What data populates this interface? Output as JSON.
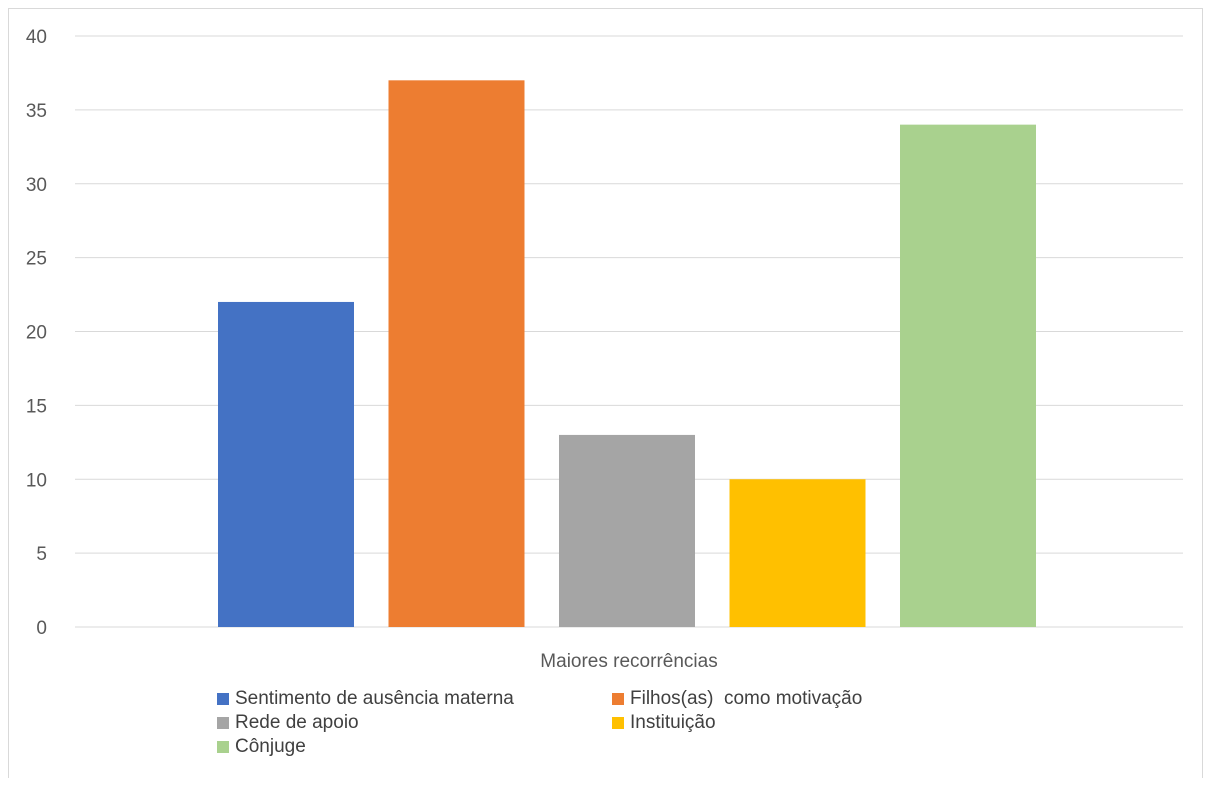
{
  "chart_data": {
    "type": "bar",
    "categories": [
      "Maiores recorrências"
    ],
    "xlabel": "",
    "ylabel": "",
    "ylim": [
      0,
      40
    ],
    "yticks": [
      0,
      5,
      10,
      15,
      20,
      25,
      30,
      35,
      40
    ],
    "grid": true,
    "legend_position": "bottom",
    "series": [
      {
        "name": "Sentimento de ausência materna",
        "values": [
          22
        ],
        "color": "#4472C4"
      },
      {
        "name": "Filhos(as)  como motivação",
        "values": [
          37
        ],
        "color": "#ED7D31"
      },
      {
        "name": "Rede de apoio",
        "values": [
          13
        ],
        "color": "#A5A5A5"
      },
      {
        "name": "Instituição",
        "values": [
          10
        ],
        "color": "#FFC000"
      },
      {
        "name": "Cônjuge",
        "values": [
          34
        ],
        "color": "#A9D18E"
      }
    ]
  }
}
